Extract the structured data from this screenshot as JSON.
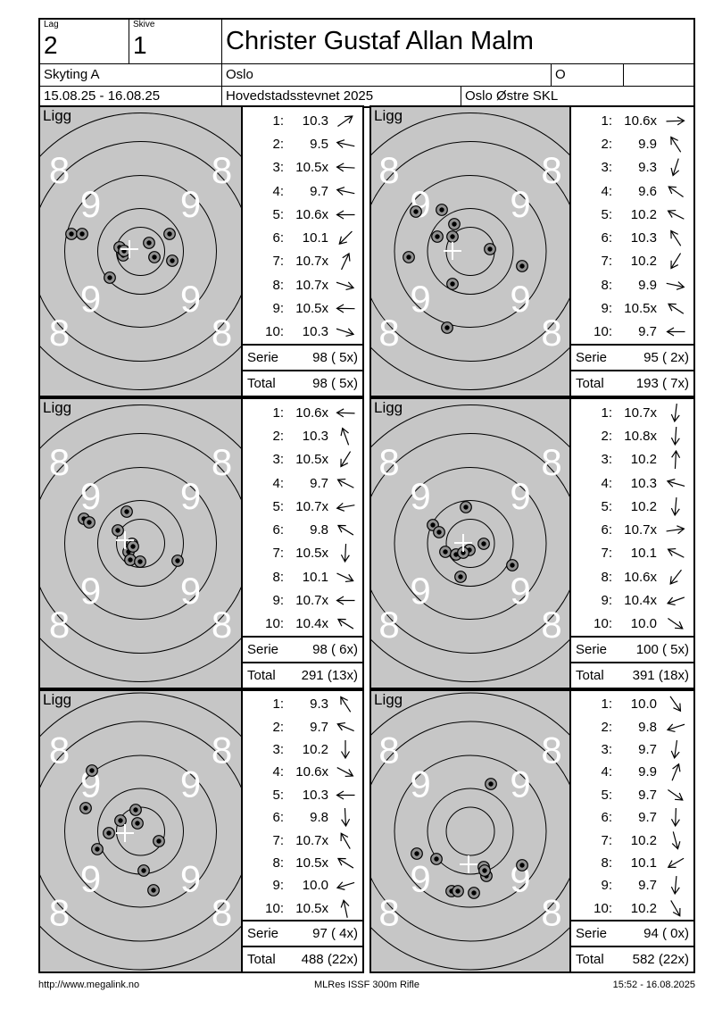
{
  "header": {
    "lag_label": "Lag",
    "lag_value": "2",
    "skive_label": "Skive",
    "skive_value": "1",
    "shooter_name": "Christer Gustaf Allan Malm",
    "discipline": "Skyting A",
    "club": "Oslo",
    "class": "O",
    "dates": "15.08.25 - 16.08.25",
    "event": "Hovedstadsstevnet 2025",
    "organizer": "Oslo Østre SKL"
  },
  "footer": {
    "left": "http://www.megalink.no",
    "center": "MLRes ISSF 300m Rifle",
    "right": "15:52 - 16.08.2025"
  },
  "ring_labels": {
    "outer": "8",
    "inner": "9"
  },
  "colors": {
    "target_bg": "#c6c6c6",
    "hole_rim": "#919191",
    "hole_core": "#000000",
    "ring_line": "#000000",
    "ring_label": "#ffffff",
    "cross": "#ffffff",
    "ink": "#000000"
  },
  "panels": [
    {
      "position_label": "Ligg",
      "serie_label": "Serie",
      "serie_value": "98 ( 5x)",
      "total_label": "Total",
      "total_value": "98 ( 5x)",
      "shots": [
        {
          "no": "1:",
          "value": "10.3",
          "arrow_deg": 325
        },
        {
          "no": "2:",
          "value": "9.5",
          "arrow_deg": 192
        },
        {
          "no": "3:",
          "value": "10.5x",
          "arrow_deg": 183
        },
        {
          "no": "4:",
          "value": "9.7",
          "arrow_deg": 192
        },
        {
          "no": "5:",
          "value": "10.6x",
          "arrow_deg": 180
        },
        {
          "no": "6:",
          "value": "10.1",
          "arrow_deg": 135
        },
        {
          "no": "7:",
          "value": "10.7x",
          "arrow_deg": 295
        },
        {
          "no": "8:",
          "value": "10.7x",
          "arrow_deg": 18
        },
        {
          "no": "9:",
          "value": "10.5x",
          "arrow_deg": 181
        },
        {
          "no": "10:",
          "value": "10.3",
          "arrow_deg": 18
        }
      ],
      "holes": [
        [
          35,
          142
        ],
        [
          47,
          142
        ],
        [
          89,
          157
        ],
        [
          93,
          166
        ],
        [
          94,
          161
        ],
        [
          122,
          152
        ],
        [
          128,
          168
        ],
        [
          145,
          142
        ],
        [
          148,
          172
        ],
        [
          78,
          191
        ]
      ],
      "cross": [
        100,
        159
      ]
    },
    {
      "position_label": "Ligg",
      "serie_label": "Serie",
      "serie_value": "95 ( 2x)",
      "total_label": "Total",
      "total_value": "193 ( 7x)",
      "shots": [
        {
          "no": "1:",
          "value": "10.6x",
          "arrow_deg": 358
        },
        {
          "no": "2:",
          "value": "9.9",
          "arrow_deg": 237
        },
        {
          "no": "3:",
          "value": "9.3",
          "arrow_deg": 108
        },
        {
          "no": "4:",
          "value": "9.6",
          "arrow_deg": 215
        },
        {
          "no": "5:",
          "value": "10.2",
          "arrow_deg": 207
        },
        {
          "no": "6:",
          "value": "10.3",
          "arrow_deg": 237
        },
        {
          "no": "7:",
          "value": "10.2",
          "arrow_deg": 122
        },
        {
          "no": "8:",
          "value": "9.9",
          "arrow_deg": 12
        },
        {
          "no": "9:",
          "value": "10.5x",
          "arrow_deg": 213
        },
        {
          "no": "10:",
          "value": "9.7",
          "arrow_deg": 180
        }
      ],
      "holes": [
        [
          50,
          117
        ],
        [
          79,
          115
        ],
        [
          93,
          131
        ],
        [
          74,
          145
        ],
        [
          91,
          145
        ],
        [
          133,
          159
        ],
        [
          42,
          168
        ],
        [
          169,
          178
        ],
        [
          91,
          198
        ],
        [
          85,
          247
        ]
      ],
      "cross": [
        91,
        161
      ]
    },
    {
      "position_label": "Ligg",
      "serie_label": "Serie",
      "serie_value": "98 ( 6x)",
      "total_label": "Total",
      "total_value": "291 (13x)",
      "shots": [
        {
          "no": "1:",
          "value": "10.6x",
          "arrow_deg": 182
        },
        {
          "no": "2:",
          "value": "10.3",
          "arrow_deg": 250
        },
        {
          "no": "3:",
          "value": "10.5x",
          "arrow_deg": 122
        },
        {
          "no": "4:",
          "value": "9.7",
          "arrow_deg": 207
        },
        {
          "no": "5:",
          "value": "10.7x",
          "arrow_deg": 170
        },
        {
          "no": "6:",
          "value": "9.8",
          "arrow_deg": 212
        },
        {
          "no": "7:",
          "value": "10.5x",
          "arrow_deg": 93
        },
        {
          "no": "8:",
          "value": "10.1",
          "arrow_deg": 25
        },
        {
          "no": "9:",
          "value": "10.7x",
          "arrow_deg": 180
        },
        {
          "no": "10:",
          "value": "10.4x",
          "arrow_deg": 212
        }
      ],
      "holes": [
        [
          49,
          134
        ],
        [
          55,
          138
        ],
        [
          97,
          126
        ],
        [
          87,
          147
        ],
        [
          103,
          162
        ],
        [
          99,
          171
        ],
        [
          101,
          180
        ],
        [
          112,
          182
        ],
        [
          154,
          181
        ],
        [
          104,
          165
        ]
      ],
      "cross": [
        95,
        158
      ]
    },
    {
      "position_label": "Ligg",
      "serie_label": "Serie",
      "serie_value": "100 ( 5x)",
      "total_label": "Total",
      "total_value": "391 (18x)",
      "shots": [
        {
          "no": "1:",
          "value": "10.7x",
          "arrow_deg": 97
        },
        {
          "no": "2:",
          "value": "10.8x",
          "arrow_deg": 94
        },
        {
          "no": "3:",
          "value": "10.2",
          "arrow_deg": 273
        },
        {
          "no": "4:",
          "value": "10.3",
          "arrow_deg": 196
        },
        {
          "no": "5:",
          "value": "10.2",
          "arrow_deg": 95
        },
        {
          "no": "6:",
          "value": "10.7x",
          "arrow_deg": 352
        },
        {
          "no": "7:",
          "value": "10.1",
          "arrow_deg": 207
        },
        {
          "no": "8:",
          "value": "10.6x",
          "arrow_deg": 128
        },
        {
          "no": "9:",
          "value": "10.4x",
          "arrow_deg": 160
        },
        {
          "no": "10:",
          "value": "10.0",
          "arrow_deg": 35
        }
      ],
      "holes": [
        [
          106,
          121
        ],
        [
          69,
          141
        ],
        [
          76,
          149
        ],
        [
          83,
          171
        ],
        [
          95,
          174
        ],
        [
          110,
          169
        ],
        [
          126,
          162
        ],
        [
          158,
          186
        ],
        [
          100,
          199
        ],
        [
          103,
          172
        ]
      ],
      "cross": [
        103,
        161
      ]
    },
    {
      "position_label": "Ligg",
      "serie_label": "Serie",
      "serie_value": "97 ( 4x)",
      "total_label": "Total",
      "total_value": "488 (22x)",
      "shots": [
        {
          "no": "1:",
          "value": "9.3",
          "arrow_deg": 237
        },
        {
          "no": "2:",
          "value": "9.7",
          "arrow_deg": 203
        },
        {
          "no": "3:",
          "value": "10.2",
          "arrow_deg": 90
        },
        {
          "no": "4:",
          "value": "10.6x",
          "arrow_deg": 28
        },
        {
          "no": "5:",
          "value": "10.3",
          "arrow_deg": 180
        },
        {
          "no": "6:",
          "value": "9.8",
          "arrow_deg": 87
        },
        {
          "no": "7:",
          "value": "10.7x",
          "arrow_deg": 240
        },
        {
          "no": "8:",
          "value": "10.5x",
          "arrow_deg": 212
        },
        {
          "no": "9:",
          "value": "10.0",
          "arrow_deg": 163
        },
        {
          "no": "10:",
          "value": "10.5x",
          "arrow_deg": 258
        }
      ],
      "holes": [
        [
          58,
          89
        ],
        [
          51,
          131
        ],
        [
          107,
          133
        ],
        [
          90,
          145
        ],
        [
          109,
          148
        ],
        [
          77,
          159
        ],
        [
          64,
          177
        ],
        [
          133,
          168
        ],
        [
          116,
          201
        ],
        [
          127,
          223
        ]
      ],
      "cross": [
        95,
        159
      ]
    },
    {
      "position_label": "Ligg",
      "serie_label": "Serie",
      "serie_value": "94 ( 0x)",
      "total_label": "Total",
      "total_value": "582 (22x)",
      "shots": [
        {
          "no": "1:",
          "value": "10.0",
          "arrow_deg": 55
        },
        {
          "no": "2:",
          "value": "9.8",
          "arrow_deg": 162
        },
        {
          "no": "3:",
          "value": "9.7",
          "arrow_deg": 98
        },
        {
          "no": "4:",
          "value": "9.9",
          "arrow_deg": 292
        },
        {
          "no": "5:",
          "value": "9.7",
          "arrow_deg": 35
        },
        {
          "no": "6:",
          "value": "9.7",
          "arrow_deg": 92
        },
        {
          "no": "7:",
          "value": "10.2",
          "arrow_deg": 75
        },
        {
          "no": "8:",
          "value": "10.1",
          "arrow_deg": 150
        },
        {
          "no": "9:",
          "value": "9.7",
          "arrow_deg": 95
        },
        {
          "no": "10:",
          "value": "10.2",
          "arrow_deg": 60
        }
      ],
      "holes": [
        [
          134,
          104
        ],
        [
          51,
          182
        ],
        [
          73,
          188
        ],
        [
          126,
          197
        ],
        [
          129,
          207
        ],
        [
          169,
          195
        ],
        [
          90,
          224
        ],
        [
          97,
          224
        ],
        [
          115,
          226
        ],
        [
          127,
          201
        ]
      ],
      "cross": [
        109,
        194
      ]
    }
  ]
}
